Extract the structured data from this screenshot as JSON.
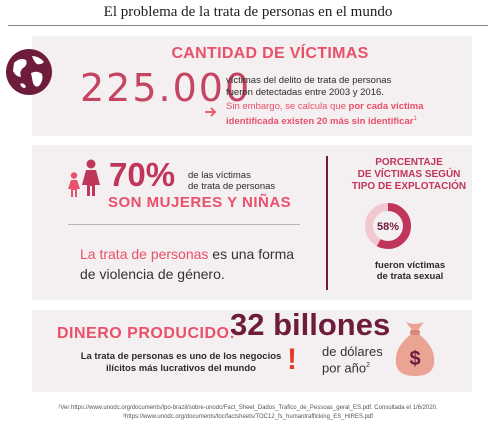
{
  "title": "El problema de la trata de personas en el mundo",
  "victims": {
    "heading": "CANTIDAD DE VÍCTIMAS",
    "count": "225.000",
    "desc_line1": "víctimas del delito de trata de personas",
    "desc_line2": "fueron detectadas entre 2003 y 2016.",
    "note_part1": "Sin embargo, se calcula que ",
    "note_bold1": "por cada víctima",
    "note_bold2": "identificada existen 20 más sin identificar",
    "note_sup": "1"
  },
  "women": {
    "percent": "70%",
    "label_line1": "de las víctimas",
    "label_line2": "de trata de personas",
    "headline": "SON MUJERES Y NIÑAS"
  },
  "violence": {
    "highlight": "La trata de personas",
    "rest": " es una forma de violencia de género."
  },
  "exploitation": {
    "heading_line1": "PORCENTAJE",
    "heading_line2": "DE VÍCTIMAS SEGÚN",
    "heading_line3": "TIPO DE EXPLOTACIÓN",
    "percent_label": "58%",
    "percent_value": 58,
    "caption_line1": "fueron víctimas",
    "caption_line2": "de trata sexual"
  },
  "money": {
    "heading": "DINERO PRODUCIDO:",
    "amount": "32 billones",
    "unit_line1": "de dólares",
    "unit_line2": "por año",
    "unit_sup": "2",
    "business_line1": "La trata de personas es uno de los negocios",
    "business_line2": "ilícitos más lucrativos del mundo",
    "exclamation": "!",
    "bag_symbol": "$"
  },
  "footnotes": {
    "line1": "¹Ver https://www.unodc.org/documents/lpo-brazil/sobre-unodc/Fact_Sheet_Dados_Trafico_de_Pessoas_geral_ES.pdf. Consultada el 1/6/2020.",
    "line2": "²https://www.unodc.org/documents/toc/factsheets/TOC12_fs_humantrafficking_ES_HIRES.pdf"
  },
  "colors": {
    "pink": "#e9506a",
    "maroon": "#6d1d3b",
    "panel": "#f4eff0",
    "donut_track": "#f3c7cf",
    "bag": "#eba393"
  },
  "icons": [
    "globe-icon",
    "arrow-right-icon",
    "woman-icon",
    "girl-icon",
    "money-bag-icon"
  ]
}
